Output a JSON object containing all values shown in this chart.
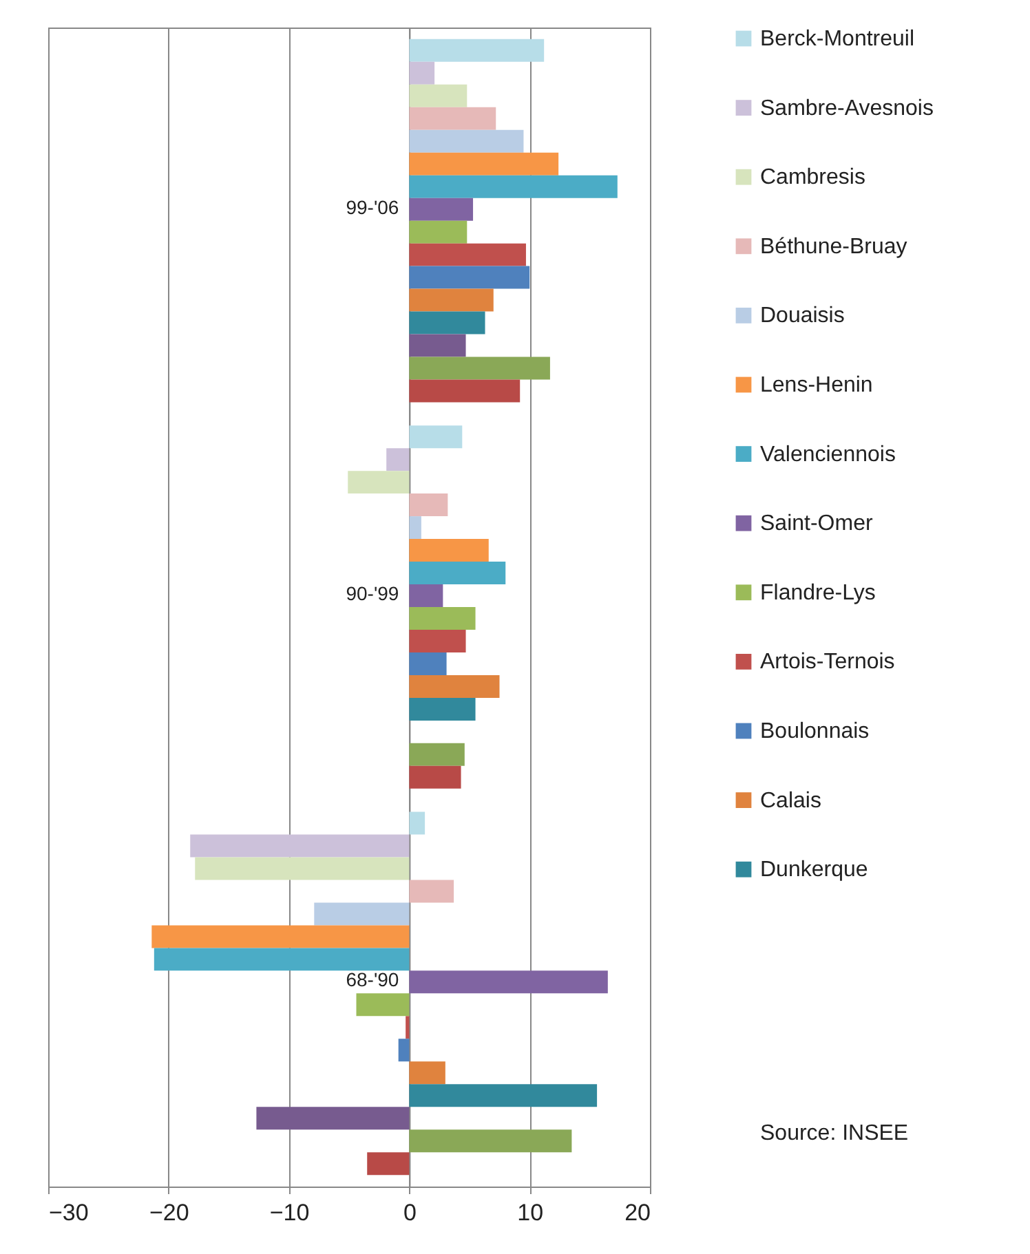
{
  "chart_data": {
    "type": "bar",
    "orientation": "horizontal",
    "categories": [
      "99-'06",
      "90-'99",
      "68-'90"
    ],
    "series": [
      {
        "name": "Berck-Montreuil",
        "color": "#b7dde8",
        "values": [
          11.2,
          4.4,
          1.3
        ]
      },
      {
        "name": "Sambre-Avesnois",
        "color": "#ccc1da",
        "values": [
          2.1,
          -1.9,
          -18.2
        ]
      },
      {
        "name": "Cambresis",
        "color": "#d7e4bd",
        "values": [
          4.8,
          -5.1,
          -17.8
        ]
      },
      {
        "name": "Béthune-Bruay",
        "color": "#e6b9b8",
        "values": [
          7.2,
          3.2,
          3.7
        ]
      },
      {
        "name": "Douaisis",
        "color": "#b9cde5",
        "values": [
          9.5,
          1.0,
          -7.9
        ]
      },
      {
        "name": "Lens-Henin",
        "color": "#f79646",
        "values": [
          12.4,
          6.6,
          -21.4
        ]
      },
      {
        "name": "Valenciennois",
        "color": "#4bacc6",
        "values": [
          17.3,
          8.0,
          -21.2
        ]
      },
      {
        "name": "Saint-Omer",
        "color": "#8064a2",
        "values": [
          5.3,
          2.8,
          16.5
        ]
      },
      {
        "name": "Flandre-Lys",
        "color": "#9bbb59",
        "values": [
          4.8,
          5.5,
          -4.4
        ]
      },
      {
        "name": "Artois-Ternois",
        "color": "#c0504d",
        "values": [
          9.7,
          4.7,
          -0.3
        ]
      },
      {
        "name": "Boulonnais",
        "color": "#4f81bd",
        "values": [
          10.0,
          3.1,
          -0.9
        ]
      },
      {
        "name": "Calais",
        "color": "#e0833e",
        "values": [
          7.0,
          7.5,
          3.0
        ]
      },
      {
        "name": "Dunkerque",
        "color": "#31899c",
        "values": [
          6.3,
          5.5,
          15.6
        ]
      },
      {
        "color": "#775b8f",
        "values": [
          4.7,
          null,
          -12.7
        ]
      },
      {
        "color": "#8aa857",
        "values": [
          11.7,
          4.6,
          13.5
        ]
      },
      {
        "color": "#b84a47",
        "values": [
          9.2,
          4.3,
          -3.5
        ]
      }
    ],
    "xlim": [
      -30,
      20
    ],
    "xticks": [
      -30,
      -20,
      -10,
      0,
      10,
      20
    ],
    "grid": "x",
    "legend": "right",
    "annotations": [
      "Source: INSEE"
    ]
  }
}
